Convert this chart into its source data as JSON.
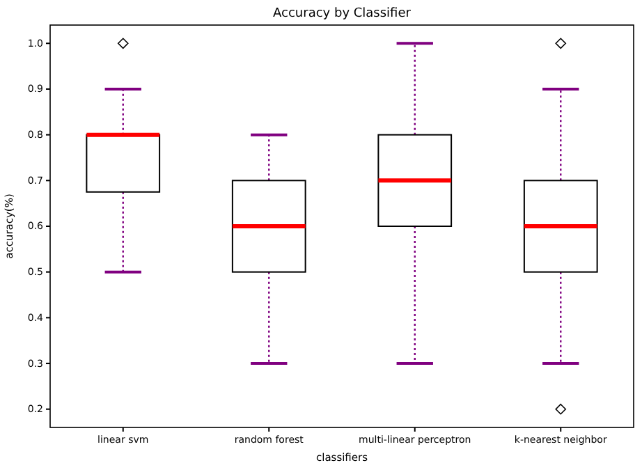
{
  "chart_data": {
    "type": "box",
    "title": "Accuracy by Classifier",
    "xlabel": "classifiers",
    "ylabel": "accuracy(%)",
    "categories": [
      "linear svm",
      "random forest",
      "multi-linear perceptron",
      "k-nearest neighbor"
    ],
    "series": [
      {
        "color": "#000000",
        "boxes": [
          {
            "low": 0.5,
            "q1": 0.675,
            "median": 0.8,
            "q3": 0.8,
            "high": 0.9,
            "outliers": [
              1.0
            ]
          },
          {
            "low": 0.3,
            "q1": 0.5,
            "median": 0.6,
            "q3": 0.7,
            "high": 0.8
          },
          {
            "low": 0.3,
            "q1": 0.6,
            "median": 0.7,
            "q3": 0.8,
            "high": 1.0
          },
          {
            "low": 0.3,
            "q1": 0.5,
            "median": 0.6,
            "q3": 0.7,
            "high": 0.9,
            "outliers": [
              1.0,
              0.2
            ]
          }
        ]
      }
    ],
    "ylim": [
      0.16,
      1.04
    ],
    "yticks": [
      {
        "value": 0.2,
        "label": "0.2"
      },
      {
        "value": 0.3,
        "label": "0.3"
      },
      {
        "value": 0.4,
        "label": "0.4"
      },
      {
        "value": 0.5,
        "label": "0.5"
      },
      {
        "value": 0.6,
        "label": "0.6"
      },
      {
        "value": 0.7,
        "label": "0.7"
      },
      {
        "value": 0.8,
        "label": "0.8"
      },
      {
        "value": 0.9,
        "label": "0.9"
      },
      {
        "value": 1.0,
        "label": "1.0"
      }
    ],
    "grid": false,
    "line_style": "dotted",
    "marker": "diamond"
  }
}
